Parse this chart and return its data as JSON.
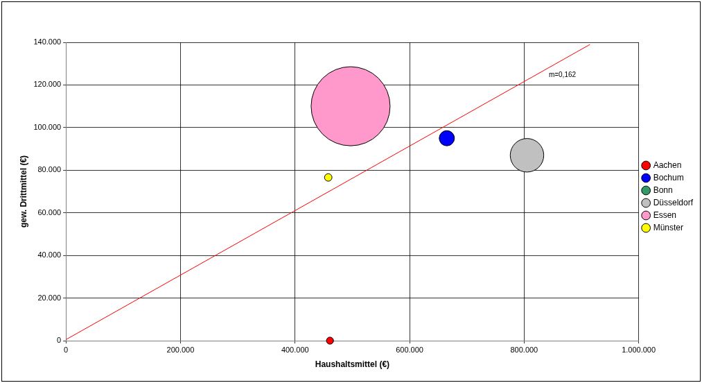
{
  "chart_data": {
    "type": "bubble",
    "xlabel": "Haushaltsmittel (€)",
    "ylabel": "gew. Drittmittel (€)",
    "xlim": [
      0,
      1000000
    ],
    "xticks": [
      {
        "value": 0,
        "label": "0"
      },
      {
        "value": 200000,
        "label": "200.000"
      },
      {
        "value": 400000,
        "label": "400.000"
      },
      {
        "value": 600000,
        "label": "600.000"
      },
      {
        "value": 800000,
        "label": "800.000"
      },
      {
        "value": 1000000,
        "label": "1.000.000"
      }
    ],
    "ylim": [
      0,
      140000
    ],
    "yticks": [
      {
        "value": 0,
        "label": "0"
      },
      {
        "value": 20000,
        "label": "20.000"
      },
      {
        "value": 40000,
        "label": "40.000"
      },
      {
        "value": 60000,
        "label": "60.000"
      },
      {
        "value": 80000,
        "label": "80.000"
      },
      {
        "value": 100000,
        "label": "100.000"
      },
      {
        "value": 120000,
        "label": "120.000"
      },
      {
        "value": 140000,
        "label": "140.000"
      }
    ],
    "grid": true,
    "legend": "right",
    "series": [
      {
        "name": "Aachen",
        "color": "#ff0000",
        "x": [
          461000
        ],
        "values": [
          0
        ],
        "sizes": [
          0.008
        ]
      },
      {
        "name": "Bochum",
        "color": "#0000ff",
        "x": [
          665000
        ],
        "values": [
          95000
        ],
        "sizes": [
          0.037
        ]
      },
      {
        "name": "Bonn",
        "color": "#339966",
        "x": [
          null
        ],
        "values": [
          null
        ],
        "sizes": [
          null
        ]
      },
      {
        "name": "Düsseldorf",
        "color": "#c0c0c0",
        "x": [
          805000
        ],
        "values": [
          87000
        ],
        "sizes": [
          0.18
        ]
      },
      {
        "name": "Essen",
        "color": "#ff99cc",
        "x": [
          497000
        ],
        "values": [
          110000
        ],
        "sizes": [
          1
        ]
      },
      {
        "name": "Münster",
        "color": "#ffff00",
        "x": [
          458000
        ],
        "values": [
          76600
        ],
        "sizes": [
          0.009
        ]
      },
      {
        "type": "line",
        "color": "#ff0000",
        "x": [
          0,
          915000
        ],
        "values": [
          500,
          139000
        ]
      }
    ],
    "annotations": [
      "m=0,162"
    ]
  }
}
